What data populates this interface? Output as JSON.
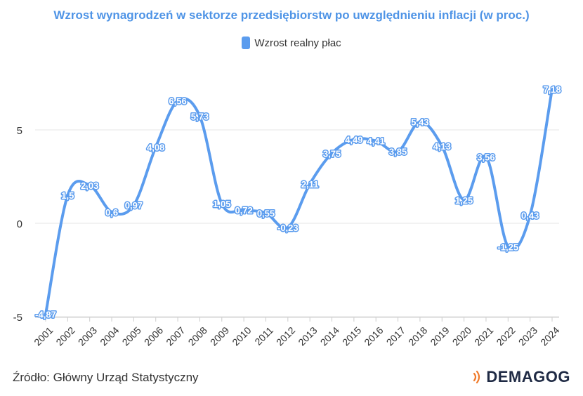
{
  "title": "Wzrost wynagrodzeń w sektorze przedsiębiorstw po uwzględnieniu inflacji (w proc.)",
  "legend": {
    "label": "Wzrost realny płac"
  },
  "source": "Źródło: Główny Urząd Statystyczny",
  "logo": {
    "text": "DEMAGOG"
  },
  "colors": {
    "line": "#5b9cee",
    "title": "#4f94e6",
    "grid": "#e6e6e6",
    "logo_accent": "#f07a2a"
  },
  "chart_data": {
    "type": "line",
    "title": "Wzrost wynagrodzeń w sektorze przedsiębiorstw po uwzględnieniu inflacji (w proc.)",
    "categories": [
      "2001",
      "2002",
      "2003",
      "2004",
      "2005",
      "2006",
      "2007",
      "2008",
      "2009",
      "2010",
      "2011",
      "2012",
      "2013",
      "2014",
      "2015",
      "2016",
      "2017",
      "2018",
      "2019",
      "2020",
      "2021",
      "2022",
      "2023",
      "2024"
    ],
    "series": [
      {
        "name": "Wzrost realny płac",
        "values": [
          -4.87,
          1.5,
          2.03,
          0.6,
          0.97,
          4.08,
          6.56,
          5.73,
          1.05,
          0.72,
          0.55,
          -0.23,
          2.11,
          3.75,
          4.49,
          4.41,
          3.85,
          5.43,
          4.13,
          1.25,
          3.56,
          -1.25,
          0.43,
          7.18
        ],
        "labels": [
          "-4,87",
          "1,5",
          "2,03",
          "0,6",
          "0,97",
          "4,08",
          "6,56",
          "5,73",
          "1,05",
          "0,72",
          "0,55",
          "-0,23",
          "2,11",
          "3,75",
          "4,49",
          "4,41",
          "3,85",
          "5,43",
          "4,13",
          "1,25",
          "3,56",
          "-1,25",
          "0,43",
          "7,18"
        ]
      }
    ],
    "yticks": [
      "-5",
      "0",
      "5"
    ],
    "ytick_values": [
      -5,
      0,
      5
    ],
    "ylim": [
      -5,
      8
    ],
    "grid": true,
    "legend_position": "top-center"
  }
}
